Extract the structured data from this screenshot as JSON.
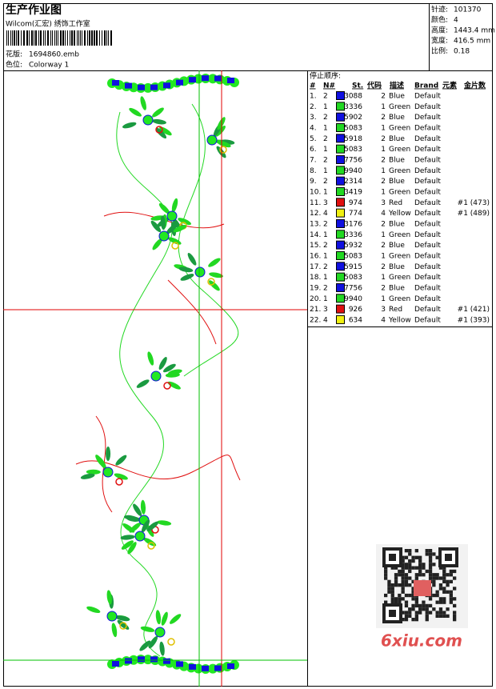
{
  "header": {
    "title": "生产作业图",
    "company": "Wilcom(汇宏) 绣饰工作室",
    "design_label": "花版:",
    "design": "1694860.emb",
    "colorway_label": "色位:",
    "colorway": "Colorway 1"
  },
  "stats": [
    {
      "label": "针迹:",
      "value": "101370"
    },
    {
      "label": "颜色:",
      "value": "4"
    },
    {
      "label": "高度:",
      "value": "1443.4 mm"
    },
    {
      "label": "宽度:",
      "value": "416.5 mm"
    },
    {
      "label": "比例:",
      "value": "0.18"
    }
  ],
  "table": {
    "caption": "停止顺序:",
    "headers": [
      "#",
      "N#",
      "St.",
      "代码",
      "描述",
      "Brand",
      "元素",
      "金片数"
    ],
    "rows": [
      {
        "num": "1.",
        "needle": "2",
        "code": "3088",
        "st": "2",
        "desc": "Blue",
        "brand": "Default",
        "swatch": "#1010e0"
      },
      {
        "num": "2.",
        "needle": "1",
        "code": "3336",
        "st": "1",
        "desc": "Green",
        "brand": "Default",
        "swatch": "#22d822"
      },
      {
        "num": "3.",
        "needle": "2",
        "code": "5902",
        "st": "2",
        "desc": "Blue",
        "brand": "Default",
        "swatch": "#1010e0"
      },
      {
        "num": "4.",
        "needle": "1",
        "code": "5083",
        "st": "1",
        "desc": "Green",
        "brand": "Default",
        "swatch": "#22d822"
      },
      {
        "num": "5.",
        "needle": "2",
        "code": "5918",
        "st": "2",
        "desc": "Blue",
        "brand": "Default",
        "swatch": "#1010e0"
      },
      {
        "num": "6.",
        "needle": "1",
        "code": "5083",
        "st": "1",
        "desc": "Green",
        "brand": "Default",
        "swatch": "#22d822"
      },
      {
        "num": "7.",
        "needle": "2",
        "code": "7756",
        "st": "2",
        "desc": "Blue",
        "brand": "Default",
        "swatch": "#1010e0"
      },
      {
        "num": "8.",
        "needle": "1",
        "code": "9940",
        "st": "1",
        "desc": "Green",
        "brand": "Default",
        "swatch": "#22d822"
      },
      {
        "num": "9.",
        "needle": "2",
        "code": "2314",
        "st": "2",
        "desc": "Blue",
        "brand": "Default",
        "swatch": "#1010e0"
      },
      {
        "num": "10.",
        "needle": "1",
        "code": "3419",
        "st": "1",
        "desc": "Green",
        "brand": "Default",
        "swatch": "#22d822"
      },
      {
        "num": "11.",
        "needle": "3",
        "code": "974",
        "st": "3",
        "desc": "Red",
        "brand": "Default",
        "swatch": "#e01010",
        "sequins": "#1 (473)"
      },
      {
        "num": "12.",
        "needle": "4",
        "code": "774",
        "st": "4",
        "desc": "Yellow",
        "brand": "Default",
        "swatch": "#f0f010",
        "sequins": "#1 (489)"
      },
      {
        "num": "13.",
        "needle": "2",
        "code": "3176",
        "st": "2",
        "desc": "Blue",
        "brand": "Default",
        "swatch": "#1010e0"
      },
      {
        "num": "14.",
        "needle": "1",
        "code": "3336",
        "st": "1",
        "desc": "Green",
        "brand": "Default",
        "swatch": "#22d822"
      },
      {
        "num": "15.",
        "needle": "2",
        "code": "5932",
        "st": "2",
        "desc": "Blue",
        "brand": "Default",
        "swatch": "#1010e0"
      },
      {
        "num": "16.",
        "needle": "1",
        "code": "5083",
        "st": "1",
        "desc": "Green",
        "brand": "Default",
        "swatch": "#22d822"
      },
      {
        "num": "17.",
        "needle": "2",
        "code": "5915",
        "st": "2",
        "desc": "Blue",
        "brand": "Default",
        "swatch": "#1010e0"
      },
      {
        "num": "18.",
        "needle": "1",
        "code": "5083",
        "st": "1",
        "desc": "Green",
        "brand": "Default",
        "swatch": "#22d822"
      },
      {
        "num": "19.",
        "needle": "2",
        "code": "7756",
        "st": "2",
        "desc": "Blue",
        "brand": "Default",
        "swatch": "#1010e0"
      },
      {
        "num": "20.",
        "needle": "1",
        "code": "9940",
        "st": "1",
        "desc": "Green",
        "brand": "Default",
        "swatch": "#22d822"
      },
      {
        "num": "21.",
        "needle": "3",
        "code": "926",
        "st": "3",
        "desc": "Red",
        "brand": "Default",
        "swatch": "#e01010",
        "sequins": "#1 (421)"
      },
      {
        "num": "22.",
        "needle": "4",
        "code": "634",
        "st": "4",
        "desc": "Yellow",
        "brand": "Default",
        "swatch": "#f0f010",
        "sequins": "#1 (393)"
      }
    ]
  },
  "watermark": "6xiu.com"
}
